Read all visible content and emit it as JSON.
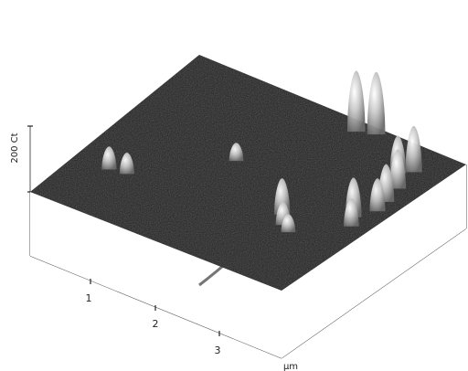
{
  "chart_data": {
    "type": "surface3d",
    "title": "",
    "z_axis": {
      "label": "200 Ct",
      "range": [
        0,
        200
      ]
    },
    "x_axis": {
      "unit": "µm",
      "ticks": [
        "1",
        "2",
        "3"
      ],
      "range": [
        0,
        4
      ]
    },
    "y_axis": {
      "range": [
        0,
        4
      ]
    },
    "surface_color": "#202020",
    "peak_color": "#dcdcdc",
    "peaks": [
      {
        "x": 0.55,
        "y": 1.05,
        "height": 70
      },
      {
        "x": 0.8,
        "y": 1.1,
        "height": 65
      },
      {
        "x": 1.8,
        "y": 2.2,
        "height": 55
      },
      {
        "x": 2.7,
        "y": 3.7,
        "height": 185
      },
      {
        "x": 2.95,
        "y": 3.8,
        "height": 190
      },
      {
        "x": 3.0,
        "y": 1.5,
        "height": 110
      },
      {
        "x": 3.15,
        "y": 1.3,
        "height": 70
      },
      {
        "x": 3.3,
        "y": 1.2,
        "height": 55
      },
      {
        "x": 3.7,
        "y": 3.2,
        "height": 115
      },
      {
        "x": 3.85,
        "y": 3.35,
        "height": 140
      },
      {
        "x": 3.9,
        "y": 2.9,
        "height": 120
      },
      {
        "x": 3.95,
        "y": 2.55,
        "height": 115
      },
      {
        "x": 3.98,
        "y": 2.3,
        "height": 100
      },
      {
        "x": 3.8,
        "y": 2.0,
        "height": 120
      },
      {
        "x": 3.9,
        "y": 1.8,
        "height": 85
      }
    ]
  }
}
